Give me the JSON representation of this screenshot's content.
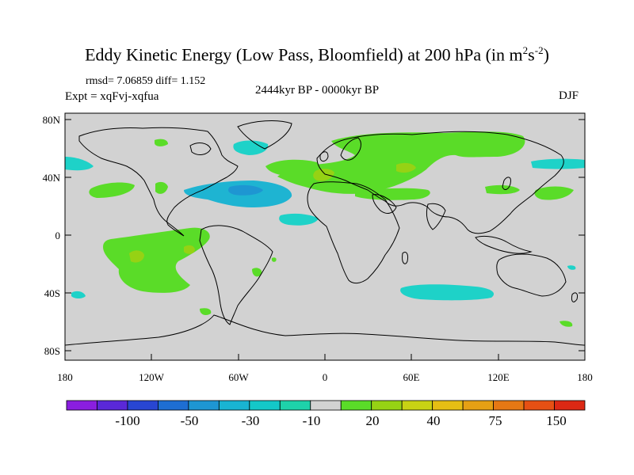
{
  "header": {
    "title_main": "Eddy Kinetic Energy (Low Pass, Bloomfield) at 200 hPa (in m",
    "title_exp1": "2",
    "title_mid": "s",
    "title_exp2": "-2",
    "title_end": ")",
    "stats": "rmsd= 7.06859 diff= 1.152",
    "expt": "Expt = xqFvj-xqfua",
    "period": "2444kyr BP - 0000kyr BP",
    "season": "DJF"
  },
  "axes": {
    "lat_labels": [
      "80N",
      "40N",
      "0",
      "40S",
      "80S"
    ],
    "lon_labels": [
      "180",
      "120W",
      "60W",
      "0",
      "60E",
      "120E",
      "180"
    ]
  },
  "colorbar": {
    "colors": [
      "#8a1ee0",
      "#5a28d8",
      "#2846d2",
      "#1e6ed2",
      "#1e96d2",
      "#19b4d2",
      "#14c8c8",
      "#1ed2aa",
      "#d2d2d2",
      "#5adc28",
      "#96d214",
      "#c8d214",
      "#e6be14",
      "#e6a014",
      "#e67814",
      "#e65014",
      "#dc2814"
    ],
    "labels": [
      "-100",
      "-50",
      "-30",
      "-10",
      "20",
      "40",
      "75",
      "150"
    ]
  },
  "legend_colors": {
    "land_bg": "#d2d2d2",
    "green": "#5adc28",
    "yellow_green": "#96d214",
    "cyan": "#1ed2c8",
    "blue_cyan": "#1eb4d2",
    "mid_blue": "#1e96d2",
    "orange": "#e6a014"
  }
}
